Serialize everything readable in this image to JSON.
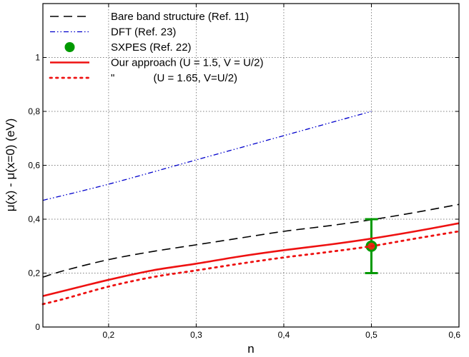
{
  "chart_data": {
    "type": "line",
    "xlabel": "n",
    "ylabel": "μ(x) - μ(x=0)  (eV)",
    "xlim": [
      0.125,
      0.6
    ],
    "ylim": [
      0,
      1.2
    ],
    "xticks": [
      0.2,
      0.3,
      0.4,
      0.5,
      0.6
    ],
    "xtick_labels": [
      "0,2",
      "0,3",
      "0,4",
      "0,5",
      "0,6"
    ],
    "yticks": [
      0,
      0.2,
      0.4,
      0.6,
      0.8,
      1.0
    ],
    "ytick_labels": [
      "0",
      "0,2",
      "0,4",
      "0,6",
      "0,8",
      "1"
    ],
    "grid": true,
    "legend_position": "top-left",
    "series": [
      {
        "name": "Bare band structure (Ref. 11)",
        "style": "dashed",
        "color": "#000000",
        "x": [
          0.125,
          0.15,
          0.2,
          0.25,
          0.3,
          0.35,
          0.4,
          0.45,
          0.5,
          0.55,
          0.6
        ],
        "y": [
          0.185,
          0.21,
          0.25,
          0.28,
          0.305,
          0.33,
          0.355,
          0.375,
          0.398,
          0.425,
          0.455
        ]
      },
      {
        "name": "DFT (Ref. 23)",
        "style": "dashdot",
        "color": "#0000cc",
        "x": [
          0.125,
          0.2,
          0.3,
          0.4,
          0.5
        ],
        "y": [
          0.47,
          0.53,
          0.62,
          0.71,
          0.8
        ]
      },
      {
        "name": "SXPES (Ref. 22)",
        "style": "marker",
        "color": "#009900",
        "x": [
          0.5
        ],
        "y": [
          0.3
        ],
        "error_low": [
          0.2
        ],
        "error_high": [
          0.4
        ]
      },
      {
        "name": "Our approach (U = 1.5, V = U/2)",
        "style": "solid",
        "color": "#ee1111",
        "x": [
          0.125,
          0.15,
          0.2,
          0.25,
          0.3,
          0.35,
          0.4,
          0.45,
          0.5,
          0.55,
          0.6
        ],
        "y": [
          0.115,
          0.135,
          0.175,
          0.21,
          0.235,
          0.262,
          0.285,
          0.305,
          0.328,
          0.355,
          0.385
        ]
      },
      {
        "name": "\"             (U = 1.65, V=U/2)",
        "style": "dotted",
        "color": "#ee1111",
        "x": [
          0.125,
          0.15,
          0.2,
          0.25,
          0.3,
          0.35,
          0.4,
          0.45,
          0.5,
          0.55,
          0.6
        ],
        "y": [
          0.085,
          0.105,
          0.15,
          0.185,
          0.21,
          0.235,
          0.258,
          0.278,
          0.3,
          0.328,
          0.355
        ]
      }
    ]
  }
}
